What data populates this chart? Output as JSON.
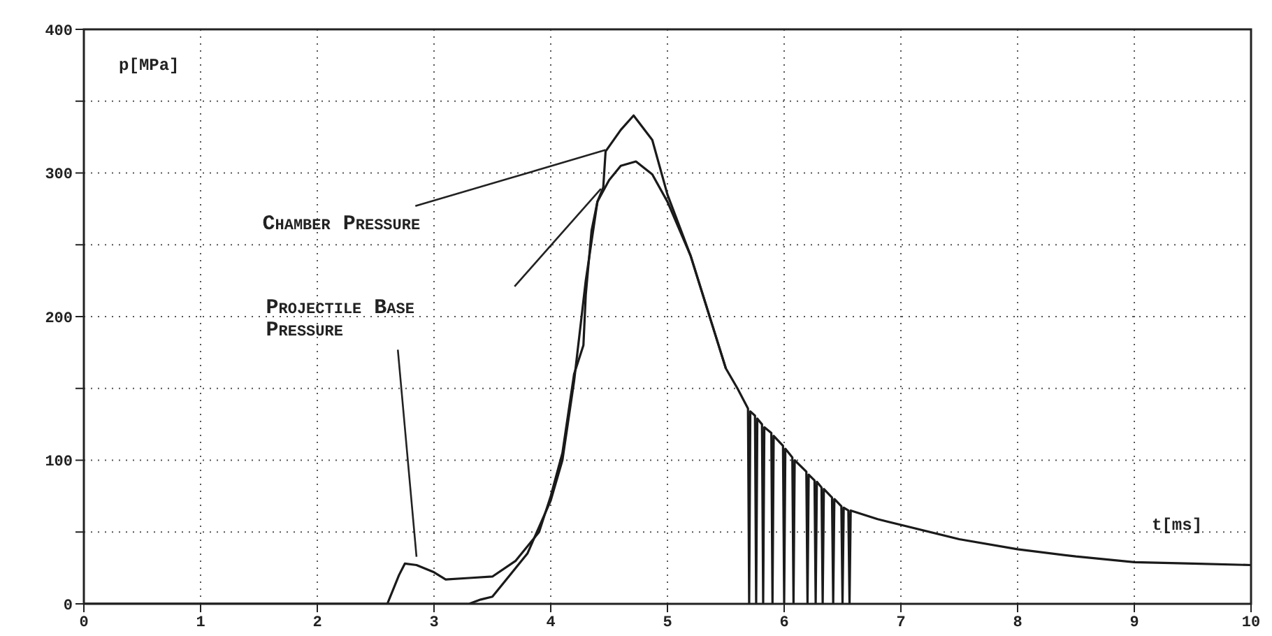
{
  "chart_data": {
    "type": "line",
    "xlabel": "t[ms]",
    "ylabel": "p[MPa]",
    "xlim": [
      0,
      10
    ],
    "xticks": [
      0,
      1,
      2,
      3,
      4,
      5,
      6,
      7,
      8,
      9,
      10
    ],
    "ylim": [
      0,
      400
    ],
    "yticks": [
      0,
      {
        "value": 50,
        "label": null
      },
      100,
      {
        "value": 150,
        "label": null
      },
      200,
      {
        "value": 250,
        "label": null
      },
      300,
      {
        "value": 350,
        "label": null
      },
      400
    ],
    "grid": true,
    "marker": "none",
    "line_style": "solid",
    "annotations": [
      {
        "text": "Chamber Pressure",
        "x": 4.47,
        "y": 316
      },
      "Projectile Base Pressure"
    ],
    "series": [
      {
        "color": "#1a1a1a",
        "x": [
          0,
          3.3,
          3.4,
          3.5,
          3.6,
          3.8,
          4.0,
          4.1,
          4.2,
          4.3,
          4.4,
          4.45,
          4.47,
          4.6,
          4.71,
          4.87,
          5.0,
          5.2,
          5.5,
          5.6,
          5.69,
          5.7,
          5.71,
          5.75,
          5.76,
          5.77,
          5.81,
          5.82,
          5.83,
          5.89,
          5.9,
          5.91,
          5.99,
          6.0,
          6.01,
          6.07,
          6.08,
          6.09,
          6.19,
          6.2,
          6.21,
          6.26,
          6.27,
          6.28,
          6.32,
          6.33,
          6.34,
          6.41,
          6.42,
          6.43,
          6.49,
          6.5,
          6.51,
          6.55,
          6.56,
          6.57,
          6.8,
          7,
          7.5,
          8,
          8.5,
          9,
          9.5,
          10
        ],
        "values": [
          0,
          0,
          3,
          5,
          15,
          35,
          72,
          100,
          155,
          225,
          280,
          290,
          315,
          330,
          340,
          323,
          285,
          242,
          164,
          150,
          136,
          0,
          134,
          131,
          0,
          129,
          125,
          0,
          123,
          119,
          0,
          117,
          110,
          0,
          108,
          102,
          0,
          100,
          92,
          0,
          90,
          86,
          0,
          85,
          81,
          0,
          80,
          74,
          0,
          73,
          68,
          0,
          67,
          65,
          0,
          65,
          59,
          55,
          45,
          38,
          33,
          29,
          28,
          27
        ]
      },
      {
        "color": "#1a1a1a",
        "x": [
          0,
          2.6,
          2.7,
          2.75,
          2.85,
          3.0,
          3.1,
          3.3,
          3.5,
          3.7,
          3.9,
          4.0,
          4.1,
          4.2,
          4.28,
          4.3,
          4.35,
          4.4,
          4.5,
          4.6,
          4.73,
          4.87,
          5.0,
          5.2,
          5.5
        ],
        "values": [
          0,
          0,
          20,
          28,
          27,
          22,
          17,
          18,
          19,
          30,
          50,
          75,
          105,
          160,
          180,
          215,
          260,
          280,
          295,
          305,
          308,
          299,
          280,
          242,
          164
        ]
      }
    ]
  }
}
